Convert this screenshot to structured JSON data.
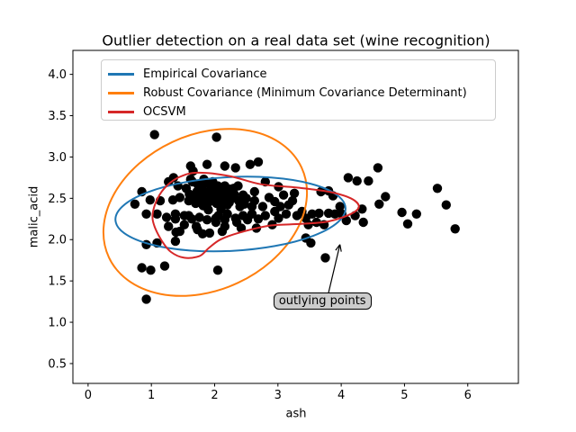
{
  "title": "Outlier detection on a real data set (wine recognition)",
  "chart_data": {
    "type": "scatter",
    "title": "Outlier detection on a real data set (wine recognition)",
    "xlabel": "ash",
    "ylabel": "malic_acid",
    "xlim": [
      -0.24,
      6.8
    ],
    "ylim": [
      0.26,
      4.29
    ],
    "x_ticks": [
      0,
      1,
      2,
      3,
      4,
      5,
      6
    ],
    "x_tick_labels": [
      "0",
      "1",
      "2",
      "3",
      "4",
      "5",
      "6"
    ],
    "y_ticks": [
      0.5,
      1.0,
      1.5,
      2.0,
      2.5,
      3.0,
      3.5,
      4.0
    ],
    "y_tick_labels": [
      "0.5",
      "1.0",
      "1.5",
      "2.0",
      "2.5",
      "3.0",
      "3.5",
      "4.0"
    ],
    "grid": false,
    "marker_color": "#000000",
    "frame_color": "#000000",
    "legend": {
      "position": "upper left",
      "entries": [
        {
          "label": "Empirical Covariance",
          "color": "#1f77b4"
        },
        {
          "label": "Robust Covariance (Minimum Covariance Determinant)",
          "color": "#ff7f0e"
        },
        {
          "label": "OCSVM",
          "color": "#d62728"
        }
      ]
    },
    "contours": [
      {
        "name": "Robust Covariance (Minimum Covariance Determinant)",
        "type": "ellipse",
        "color": "#ff7f0e",
        "center": [
          1.85,
          2.33
        ],
        "rx": 1.68,
        "ry": 0.94,
        "angle_deg": -25
      },
      {
        "name": "Empirical Covariance",
        "type": "ellipse",
        "color": "#1f77b4",
        "center": [
          2.25,
          2.31
        ],
        "rx": 1.82,
        "ry": 0.447,
        "angle_deg": -3
      },
      {
        "name": "OCSVM",
        "type": "path",
        "color": "#d62728",
        "points": [
          [
            1.73,
            2.81
          ],
          [
            2.23,
            2.77
          ],
          [
            2.73,
            2.67
          ],
          [
            3.3,
            2.63
          ],
          [
            3.8,
            2.58
          ],
          [
            4.15,
            2.5
          ],
          [
            4.28,
            2.4
          ],
          [
            4.15,
            2.31
          ],
          [
            3.8,
            2.22
          ],
          [
            3.37,
            2.19
          ],
          [
            2.87,
            2.17
          ],
          [
            2.37,
            2.08
          ],
          [
            2.09,
            2.0
          ],
          [
            1.91,
            1.9
          ],
          [
            1.76,
            1.8
          ],
          [
            1.52,
            1.78
          ],
          [
            1.31,
            1.85
          ],
          [
            1.17,
            1.98
          ],
          [
            1.05,
            2.16
          ],
          [
            1.02,
            2.31
          ],
          [
            1.1,
            2.5
          ],
          [
            1.24,
            2.65
          ],
          [
            1.45,
            2.76
          ]
        ]
      }
    ],
    "annotation": {
      "text": "outlying points",
      "xytext": [
        3.0,
        1.25
      ],
      "arrow_start": [
        3.8,
        1.36
      ],
      "arrow_end": [
        3.98,
        1.94
      ],
      "box_fill": "#cccccc",
      "box_edge": "#000000"
    },
    "points": [
      [
        1.05,
        3.27
      ],
      [
        2.03,
        3.24
      ],
      [
        1.62,
        2.89
      ],
      [
        1.66,
        2.83
      ],
      [
        1.88,
        2.91
      ],
      [
        2.16,
        2.89
      ],
      [
        2.33,
        2.87
      ],
      [
        2.56,
        2.91
      ],
      [
        2.69,
        2.94
      ],
      [
        1.27,
        2.7
      ],
      [
        1.35,
        2.75
      ],
      [
        1.42,
        2.65
      ],
      [
        1.62,
        2.73
      ],
      [
        1.65,
        2.7
      ],
      [
        1.73,
        2.67
      ],
      [
        1.78,
        2.65
      ],
      [
        1.83,
        2.73
      ],
      [
        1.85,
        2.68
      ],
      [
        1.92,
        2.67
      ],
      [
        1.97,
        2.7
      ],
      [
        2.05,
        2.65
      ],
      [
        2.12,
        2.59
      ],
      [
        2.13,
        2.62
      ],
      [
        2.16,
        2.65
      ],
      [
        2.25,
        2.61
      ],
      [
        2.3,
        2.62
      ],
      [
        2.37,
        2.65
      ],
      [
        2.63,
        2.58
      ],
      [
        2.8,
        2.7
      ],
      [
        3.01,
        2.64
      ],
      [
        0.85,
        2.58
      ],
      [
        0.98,
        2.48
      ],
      [
        0.74,
        2.43
      ],
      [
        1.14,
        2.47
      ],
      [
        1.34,
        2.48
      ],
      [
        1.45,
        2.51
      ],
      [
        1.55,
        2.62
      ],
      [
        1.59,
        2.47
      ],
      [
        1.6,
        2.55
      ],
      [
        1.68,
        2.5
      ],
      [
        1.69,
        2.53
      ],
      [
        1.72,
        2.58
      ],
      [
        1.75,
        2.52
      ],
      [
        1.78,
        2.47
      ],
      [
        1.78,
        2.56
      ],
      [
        1.8,
        2.61
      ],
      [
        1.85,
        2.49
      ],
      [
        1.87,
        2.56
      ],
      [
        1.88,
        2.51
      ],
      [
        1.92,
        2.46
      ],
      [
        1.93,
        2.6
      ],
      [
        1.95,
        2.5
      ],
      [
        1.98,
        2.47
      ],
      [
        2.0,
        2.57
      ],
      [
        2.06,
        2.58
      ],
      [
        2.06,
        2.47
      ],
      [
        2.08,
        2.52
      ],
      [
        2.09,
        2.43
      ],
      [
        2.15,
        2.5
      ],
      [
        2.18,
        2.56
      ],
      [
        2.23,
        2.45
      ],
      [
        2.28,
        2.5
      ],
      [
        2.31,
        2.55
      ],
      [
        2.38,
        2.47
      ],
      [
        2.4,
        2.4
      ],
      [
        2.45,
        2.54
      ],
      [
        2.47,
        2.43
      ],
      [
        2.5,
        2.5
      ],
      [
        2.59,
        2.4
      ],
      [
        2.63,
        2.47
      ],
      [
        2.76,
        2.4
      ],
      [
        2.86,
        2.51
      ],
      [
        2.95,
        2.46
      ],
      [
        3.04,
        2.4
      ],
      [
        3.09,
        2.54
      ],
      [
        3.17,
        2.42
      ],
      [
        3.23,
        2.47
      ],
      [
        3.26,
        2.56
      ],
      [
        0.92,
        2.31
      ],
      [
        1.09,
        2.31
      ],
      [
        1.24,
        2.27
      ],
      [
        1.38,
        2.25
      ],
      [
        1.38,
        2.31
      ],
      [
        1.52,
        2.29
      ],
      [
        1.59,
        2.29
      ],
      [
        1.64,
        2.25
      ],
      [
        1.7,
        2.44
      ],
      [
        1.76,
        2.27
      ],
      [
        1.82,
        2.41
      ],
      [
        1.88,
        2.24
      ],
      [
        1.9,
        2.36
      ],
      [
        2.02,
        2.21
      ],
      [
        2.02,
        2.26
      ],
      [
        2.03,
        2.44
      ],
      [
        2.06,
        2.29
      ],
      [
        2.1,
        2.37
      ],
      [
        2.16,
        2.24
      ],
      [
        2.2,
        2.31
      ],
      [
        2.2,
        2.42
      ],
      [
        2.33,
        2.26
      ],
      [
        2.35,
        2.21
      ],
      [
        2.45,
        2.29
      ],
      [
        2.52,
        2.24
      ],
      [
        2.59,
        2.31
      ],
      [
        2.69,
        2.25
      ],
      [
        2.8,
        2.29
      ],
      [
        2.91,
        2.18
      ],
      [
        2.95,
        2.34
      ],
      [
        3.01,
        2.26
      ],
      [
        3.13,
        2.31
      ],
      [
        3.3,
        2.29
      ],
      [
        3.38,
        2.34
      ],
      [
        3.44,
        2.26
      ],
      [
        1.27,
        2.16
      ],
      [
        1.39,
        2.09
      ],
      [
        1.45,
        2.1
      ],
      [
        1.52,
        2.18
      ],
      [
        1.71,
        2.16
      ],
      [
        1.73,
        2.12
      ],
      [
        1.81,
        2.07
      ],
      [
        1.92,
        2.08
      ],
      [
        2.12,
        2.1
      ],
      [
        2.16,
        2.16
      ],
      [
        2.42,
        2.14
      ],
      [
        2.66,
        2.14
      ],
      [
        3.48,
        2.18
      ],
      [
        3.61,
        2.21
      ],
      [
        3.73,
        2.18
      ],
      [
        3.44,
        2.02
      ],
      [
        0.92,
        1.94
      ],
      [
        1.09,
        1.96
      ],
      [
        1.38,
        1.98
      ],
      [
        0.85,
        1.66
      ],
      [
        0.99,
        1.63
      ],
      [
        1.21,
        1.68
      ],
      [
        0.92,
        1.28
      ],
      [
        2.05,
        1.63
      ],
      [
        3.52,
        1.96
      ],
      [
        3.75,
        1.78
      ],
      [
        3.54,
        2.31
      ],
      [
        3.65,
        2.32
      ],
      [
        3.8,
        2.32
      ],
      [
        3.9,
        2.31
      ],
      [
        4.01,
        2.31
      ],
      [
        4.08,
        2.23
      ],
      [
        4.22,
        2.29
      ],
      [
        3.68,
        2.58
      ],
      [
        3.8,
        2.59
      ],
      [
        3.87,
        2.53
      ],
      [
        3.98,
        2.4
      ],
      [
        4.11,
        2.75
      ],
      [
        4.25,
        2.71
      ],
      [
        4.43,
        2.71
      ],
      [
        4.58,
        2.87
      ],
      [
        4.7,
        2.52
      ],
      [
        4.6,
        2.43
      ],
      [
        4.33,
        2.37
      ],
      [
        4.35,
        2.21
      ],
      [
        4.96,
        2.33
      ],
      [
        5.19,
        2.31
      ],
      [
        5.05,
        2.19
      ],
      [
        5.52,
        2.62
      ],
      [
        5.66,
        2.42
      ],
      [
        5.8,
        2.13
      ]
    ]
  }
}
